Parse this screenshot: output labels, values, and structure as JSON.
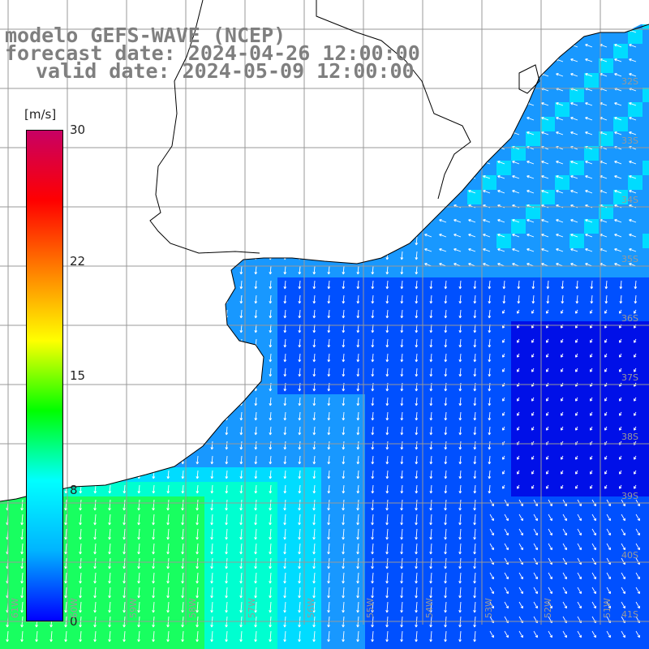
{
  "title": {
    "line1": "modelo GEFS-WAVE (NCEP)",
    "line2": "forecast date: 2024-04-26 12:00:00",
    "line3": "valid date: 2024-05-09 12:00:00"
  },
  "colorbar": {
    "unit": "[m/s]",
    "min": 0,
    "max": 30,
    "ticks": [
      "30",
      "22",
      "15",
      "8",
      "0"
    ],
    "tick_values": [
      30,
      22,
      15,
      8,
      0
    ],
    "colors": [
      "#0000ff",
      "#00b4ff",
      "#00ffff",
      "#00ff00",
      "#ffff00",
      "#ff8000",
      "#ff0000",
      "#c80064"
    ]
  },
  "map": {
    "lat_labels": [
      "32S",
      "33S",
      "34S",
      "35S",
      "36S",
      "37S",
      "38S",
      "39S",
      "40S",
      "41S"
    ],
    "lon_labels": [
      "61W",
      "60W",
      "59W",
      "58W",
      "57W",
      "56W",
      "55W",
      "54W",
      "53W",
      "52W",
      "51W"
    ],
    "land_color": "#ffffff",
    "grid_color": "#999999",
    "field_colors": {
      "deep_blue": "#0010e8",
      "blue": "#0050ff",
      "light_blue": "#1898ff",
      "cyan": "#00dcff",
      "aqua": "#00ffd0",
      "green": "#18ff60"
    }
  }
}
